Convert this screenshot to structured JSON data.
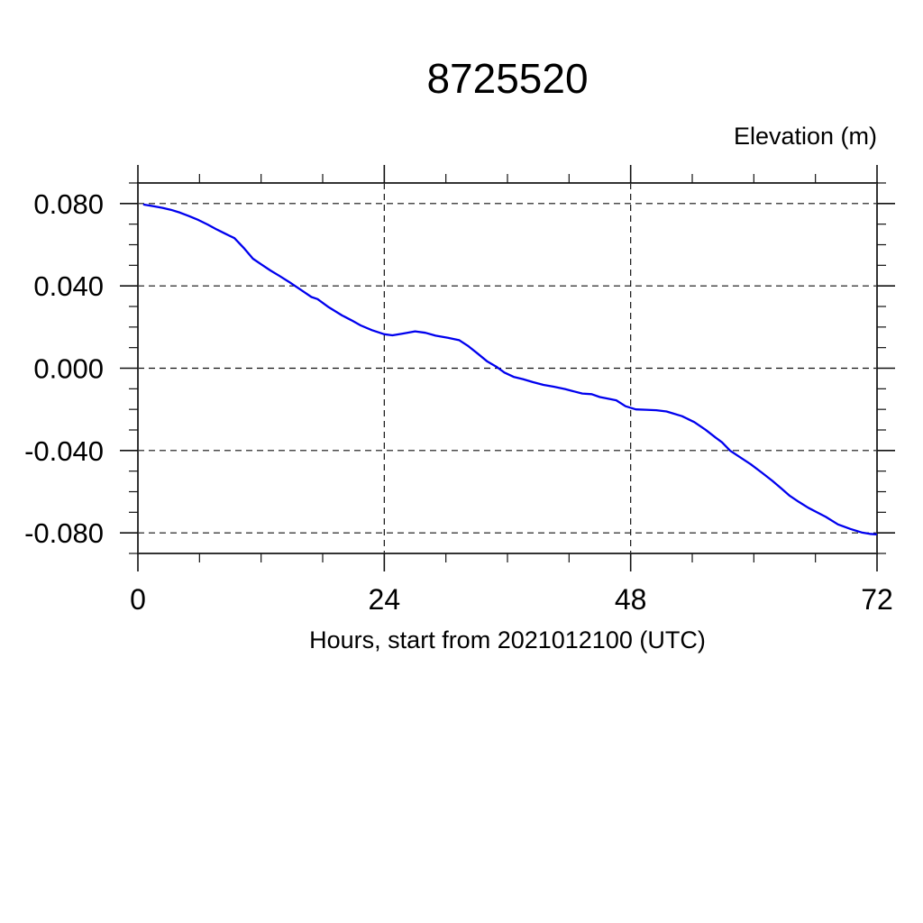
{
  "chart_data": {
    "type": "line",
    "title": "8725520",
    "ylabel": "Elevation (m)",
    "xlabel": "Hours, start from 2021012100 (UTC)",
    "xlim": [
      0,
      72
    ],
    "ylim": [
      -0.09,
      0.09
    ],
    "x_ticks_major": [
      0,
      24,
      48,
      72
    ],
    "x_tick_labels": [
      "0",
      "24",
      "48",
      "72"
    ],
    "x_minor_step": 6,
    "y_ticks_major": [
      0.08,
      0.04,
      0.0,
      -0.04,
      -0.08
    ],
    "y_tick_labels": [
      "0.080",
      "0.040",
      "0.000",
      "-0.040",
      "-0.080"
    ],
    "y_minor_step": 0.01,
    "grid": "dashed lines at major ticks, ticks point outward on all four sides",
    "legend": "none",
    "series": [
      {
        "name": "elevation",
        "color": "#0000ee",
        "points": [
          [
            0.6,
            0.0795
          ],
          [
            1.5,
            0.0787
          ],
          [
            2.4,
            0.0779
          ],
          [
            3.2,
            0.077
          ],
          [
            4.1,
            0.0756
          ],
          [
            5.0,
            0.0739
          ],
          [
            5.9,
            0.072
          ],
          [
            6.8,
            0.0698
          ],
          [
            7.6,
            0.0676
          ],
          [
            8.5,
            0.0654
          ],
          [
            9.4,
            0.0632
          ],
          [
            10.3,
            0.0585
          ],
          [
            11.2,
            0.0532
          ],
          [
            12.0,
            0.0505
          ],
          [
            12.9,
            0.0475
          ],
          [
            13.8,
            0.0448
          ],
          [
            14.7,
            0.042
          ],
          [
            15.3,
            0.04
          ],
          [
            16.1,
            0.0373
          ],
          [
            16.9,
            0.0346
          ],
          [
            17.5,
            0.0336
          ],
          [
            18.6,
            0.0296
          ],
          [
            19.9,
            0.0256
          ],
          [
            20.8,
            0.0233
          ],
          [
            21.7,
            0.0208
          ],
          [
            22.8,
            0.0185
          ],
          [
            24.0,
            0.0165
          ],
          [
            24.8,
            0.016
          ],
          [
            25.8,
            0.0168
          ],
          [
            27.0,
            0.0179
          ],
          [
            28.0,
            0.0172
          ],
          [
            29.0,
            0.0158
          ],
          [
            30.2,
            0.0148
          ],
          [
            31.3,
            0.0136
          ],
          [
            32.2,
            0.0107
          ],
          [
            33.1,
            0.0071
          ],
          [
            34.0,
            0.0034
          ],
          [
            34.9,
            0.0008
          ],
          [
            35.7,
            -0.0021
          ],
          [
            36.6,
            -0.0042
          ],
          [
            37.5,
            -0.0053
          ],
          [
            38.5,
            -0.0068
          ],
          [
            39.5,
            -0.0081
          ],
          [
            40.5,
            -0.009
          ],
          [
            41.6,
            -0.0101
          ],
          [
            42.5,
            -0.0113
          ],
          [
            43.3,
            -0.0123
          ],
          [
            44.2,
            -0.0126
          ],
          [
            45.0,
            -0.014
          ],
          [
            46.0,
            -0.015
          ],
          [
            46.6,
            -0.0156
          ],
          [
            47.5,
            -0.0185
          ],
          [
            48.5,
            -0.02
          ],
          [
            49.5,
            -0.0202
          ],
          [
            50.5,
            -0.0204
          ],
          [
            51.5,
            -0.021
          ],
          [
            53.0,
            -0.0233
          ],
          [
            54.2,
            -0.0262
          ],
          [
            55.3,
            -0.0299
          ],
          [
            56.3,
            -0.0338
          ],
          [
            56.9,
            -0.036
          ],
          [
            57.7,
            -0.0401
          ],
          [
            58.7,
            -0.0434
          ],
          [
            59.7,
            -0.0467
          ],
          [
            60.8,
            -0.0508
          ],
          [
            61.8,
            -0.0547
          ],
          [
            62.7,
            -0.0585
          ],
          [
            63.5,
            -0.062
          ],
          [
            64.4,
            -0.065
          ],
          [
            65.3,
            -0.0678
          ],
          [
            66.2,
            -0.0701
          ],
          [
            67.0,
            -0.0722
          ],
          [
            68.2,
            -0.0759
          ],
          [
            69.4,
            -0.0781
          ],
          [
            70.5,
            -0.0798
          ],
          [
            71.3,
            -0.0805
          ],
          [
            71.9,
            -0.0807
          ]
        ]
      }
    ],
    "colors": {
      "line": "#0000ee",
      "frame": "#333333",
      "grid": "#111111",
      "text": "#000000",
      "background": "#ffffff"
    }
  }
}
